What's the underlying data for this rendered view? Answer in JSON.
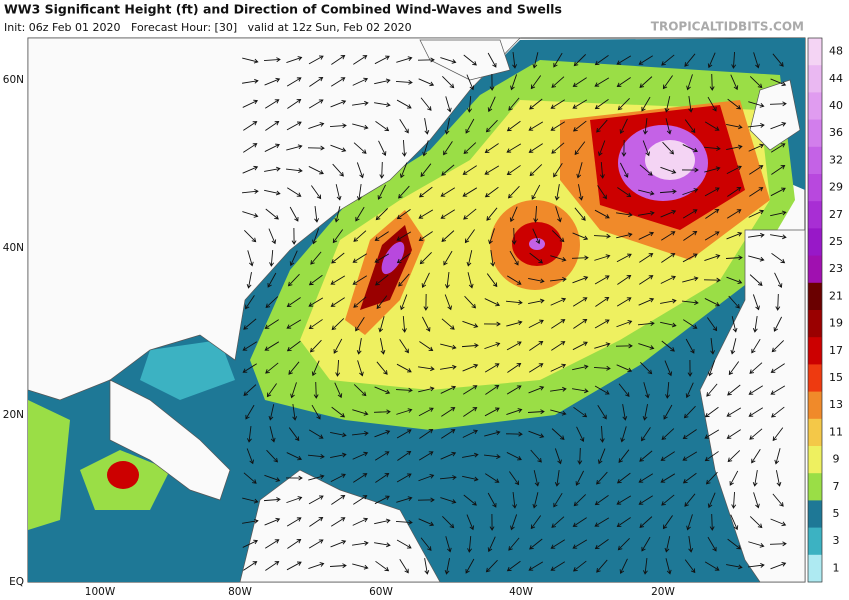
{
  "header": {
    "title": "WW3 Significant Height (ft) and Direction of Combined Wind-Waves and Swells",
    "subtitle": "Init: 06z Feb 01 2020   Forecast Hour: [30]   valid at 12z Sun, Feb 02 2020",
    "site": "TROPICALTIDBITS.COM"
  },
  "map": {
    "lat_labels": [
      "60N",
      "40N",
      "20N",
      "EQ"
    ],
    "lon_labels": [
      "100W",
      "80W",
      "60W",
      "40W",
      "20W"
    ]
  },
  "colorbar": {
    "labels": [
      48,
      44,
      40,
      36,
      32,
      29,
      27,
      25,
      23,
      21,
      19,
      17,
      15,
      13,
      11,
      9,
      7,
      5,
      3,
      1
    ],
    "colors": [
      "#f4d4f4",
      "#eab8f2",
      "#e09cf0",
      "#d27eec",
      "#c462e6",
      "#b848de",
      "#a82ed4",
      "#9818c8",
      "#a010b0",
      "#6a0000",
      "#9a0000",
      "#cc0000",
      "#ee3a10",
      "#f08a2a",
      "#f4c848",
      "#eef060",
      "#9ade46",
      "#1e7896",
      "#3cb2c2",
      "#aeeaf2"
    ]
  }
}
